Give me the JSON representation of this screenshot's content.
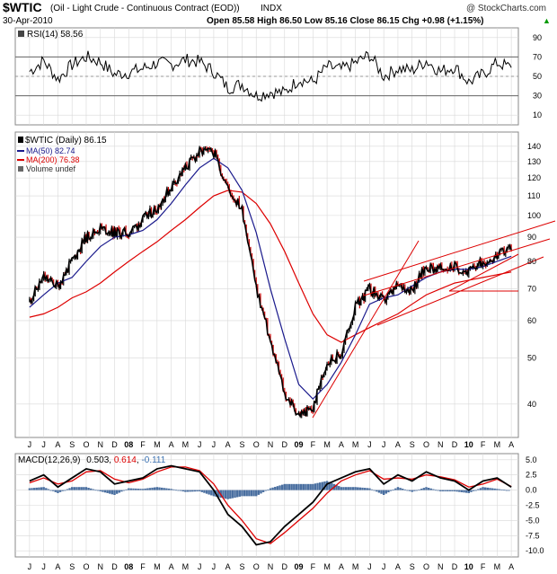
{
  "header": {
    "symbol": "$WTIC",
    "description": "(Oil - Light Crude - Continuous Contract (EOD))",
    "exchange": "INDX",
    "watermark": "@ StockCharts.com",
    "date": "30-Apr-2010",
    "quote": "Open 85.58  High 86.50  Low 85.16  Close 86.15  Chg +0.98 (+1.15%)",
    "quote_arrow": "▲"
  },
  "x_axis": {
    "labels": [
      "J",
      "J",
      "A",
      "S",
      "O",
      "N",
      "D",
      "08",
      "F",
      "M",
      "A",
      "M",
      "J",
      "J",
      "A",
      "S",
      "O",
      "N",
      "D",
      "09",
      "F",
      "M",
      "A",
      "M",
      "J",
      "J",
      "A",
      "S",
      "O",
      "N",
      "D",
      "10",
      "F",
      "M",
      "A"
    ]
  },
  "rsi_panel": {
    "legend": "RSI(14) 58.56",
    "ticks": [
      "90",
      "70",
      "50",
      "30",
      "10"
    ],
    "levels": [
      70,
      30
    ]
  },
  "price_panel": {
    "legend_main": "$WTIC (Daily) 86.15",
    "legend_ma50": "MA(50) 82.74",
    "legend_ma200": "MA(200) 76.38",
    "legend_volume": "Volume undef",
    "ticks": [
      "140",
      "130",
      "120",
      "110",
      "100",
      "90",
      "80",
      "70",
      "60",
      "50",
      "40"
    ]
  },
  "macd_panel": {
    "legend_label": "MACD(12,26,9)",
    "legend_macd": "0.503",
    "legend_signal": "0.614",
    "legend_hist": "-0.111",
    "ticks": [
      "5.0",
      "2.5",
      "0.0",
      "-2.5",
      "-5.0",
      "-7.5",
      "-10.0"
    ]
  },
  "colors": {
    "price": "#000000",
    "down_bar": "#cc0000",
    "ma50": "#1a1a8c",
    "ma200": "#dd0000",
    "trendline": "#dd0000",
    "hist": "#4a6fa0",
    "grid": "#d8d8d8",
    "frame": "#888888"
  },
  "chart_data": [
    {
      "type": "line",
      "name": "RSI(14)",
      "x": [
        "2007-06",
        "2007-07",
        "2007-08",
        "2007-09",
        "2007-10",
        "2007-11",
        "2007-12",
        "2008-01",
        "2008-02",
        "2008-03",
        "2008-04",
        "2008-05",
        "2008-06",
        "2008-07",
        "2008-08",
        "2008-09",
        "2008-10",
        "2008-11",
        "2008-12",
        "2009-01",
        "2009-02",
        "2009-03",
        "2009-04",
        "2009-05",
        "2009-06",
        "2009-07",
        "2009-08",
        "2009-09",
        "2009-10",
        "2009-11",
        "2009-12",
        "2010-01",
        "2010-02",
        "2010-03",
        "2010-04"
      ],
      "values": [
        55,
        66,
        47,
        62,
        70,
        65,
        52,
        54,
        58,
        64,
        62,
        67,
        65,
        55,
        38,
        42,
        30,
        34,
        33,
        47,
        44,
        60,
        57,
        64,
        72,
        50,
        58,
        56,
        66,
        55,
        60,
        44,
        52,
        64,
        59
      ],
      "ylim": [
        0,
        100
      ]
    },
    {
      "type": "line",
      "title": "$WTIC (Daily) 86.15",
      "x": [
        "2007-06",
        "2007-07",
        "2007-08",
        "2007-09",
        "2007-10",
        "2007-11",
        "2007-12",
        "2008-01",
        "2008-02",
        "2008-03",
        "2008-04",
        "2008-05",
        "2008-06",
        "2008-07",
        "2008-08",
        "2008-09",
        "2008-10",
        "2008-11",
        "2008-12",
        "2009-01",
        "2009-02",
        "2009-03",
        "2009-04",
        "2009-05",
        "2009-06",
        "2009-07",
        "2009-08",
        "2009-09",
        "2009-10",
        "2009-11",
        "2009-12",
        "2010-01",
        "2010-02",
        "2010-03",
        "2010-04"
      ],
      "series": [
        {
          "name": "$WTIC",
          "values": [
            66,
            74,
            71,
            80,
            90,
            94,
            92,
            92,
            98,
            104,
            115,
            126,
            136,
            136,
            114,
            103,
            70,
            54,
            42,
            38,
            39,
            49,
            51,
            64,
            70,
            66,
            71,
            70,
            78,
            77,
            78,
            76,
            80,
            82,
            86
          ]
        },
        {
          "name": "MA(50)",
          "values": [
            64,
            68,
            72,
            74,
            80,
            86,
            90,
            91,
            93,
            98,
            106,
            116,
            126,
            132,
            126,
            113,
            92,
            70,
            55,
            44,
            41,
            44,
            49,
            56,
            65,
            67,
            68,
            71,
            74,
            76,
            77,
            77,
            78,
            80,
            82
          ]
        },
        {
          "name": "MA(200)",
          "values": [
            61,
            62,
            64,
            67,
            69,
            72,
            76,
            80,
            84,
            88,
            93,
            98,
            104,
            110,
            113,
            112,
            106,
            96,
            84,
            72,
            62,
            56,
            54,
            56,
            58,
            60,
            62,
            65,
            68,
            70,
            72,
            73,
            74,
            75,
            76
          ]
        }
      ],
      "yscale": "log",
      "ylim": [
        34,
        150
      ]
    },
    {
      "type": "line",
      "name": "MACD(12,26,9)",
      "x": [
        "2007-06",
        "2007-07",
        "2007-08",
        "2007-09",
        "2007-10",
        "2007-11",
        "2007-12",
        "2008-01",
        "2008-02",
        "2008-03",
        "2008-04",
        "2008-05",
        "2008-06",
        "2008-07",
        "2008-08",
        "2008-09",
        "2008-10",
        "2008-11",
        "2008-12",
        "2009-01",
        "2009-02",
        "2009-03",
        "2009-04",
        "2009-05",
        "2009-06",
        "2009-07",
        "2009-08",
        "2009-09",
        "2009-10",
        "2009-11",
        "2009-12",
        "2010-01",
        "2010-02",
        "2010-03",
        "2010-04"
      ],
      "series": [
        {
          "name": "MACD",
          "values": [
            1.5,
            2.5,
            0.5,
            2.0,
            3.5,
            3.0,
            1.0,
            1.5,
            2.0,
            3.5,
            4.0,
            3.5,
            3.0,
            0.0,
            -4.0,
            -6.0,
            -9.0,
            -8.5,
            -6.0,
            -4.0,
            -2.0,
            1.0,
            2.0,
            3.0,
            3.5,
            1.0,
            2.5,
            1.5,
            3.0,
            2.0,
            1.5,
            0.0,
            1.5,
            2.0,
            0.5
          ]
        },
        {
          "name": "Signal",
          "values": [
            1.2,
            2.0,
            1.0,
            1.5,
            3.0,
            3.2,
            1.8,
            1.2,
            1.8,
            3.0,
            3.8,
            3.8,
            3.2,
            1.0,
            -2.5,
            -5.0,
            -8.0,
            -8.8,
            -7.0,
            -5.0,
            -3.0,
            -0.5,
            1.5,
            2.5,
            3.2,
            1.8,
            2.0,
            1.8,
            2.5,
            2.2,
            1.7,
            0.5,
            1.0,
            1.8,
            0.6
          ]
        }
      ],
      "ylim": [
        -11,
        6
      ]
    }
  ]
}
